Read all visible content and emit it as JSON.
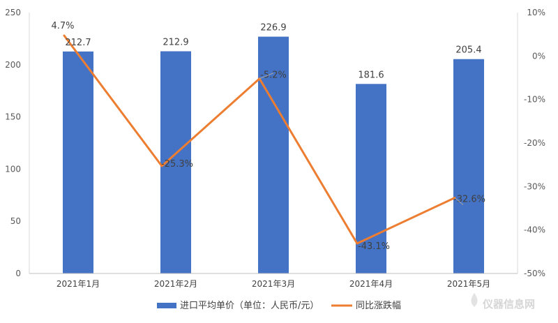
{
  "chart_data": {
    "type": "bar",
    "categories": [
      "2021年1月",
      "2021年2月",
      "2021年3月",
      "2021年4月",
      "2021年5月"
    ],
    "series": [
      {
        "name": "进口平均单价（单位：人民币/元）",
        "type": "bar",
        "axis": "left",
        "values": [
          212.7,
          212.9,
          226.9,
          181.6,
          205.4
        ],
        "labels": [
          "212.7",
          "212.9",
          "226.9",
          "181.6",
          "205.4"
        ],
        "color": "#4472C4"
      },
      {
        "name": "同比涨跌幅",
        "type": "line",
        "axis": "right",
        "values": [
          4.7,
          -25.3,
          -5.2,
          -43.1,
          -32.6
        ],
        "labels": [
          "4.7%",
          "-25.3%",
          "-5.2%",
          "-43.1%",
          "-32.6%"
        ],
        "color": "#ED7D31"
      }
    ],
    "y_left": {
      "min": 0,
      "max": 250,
      "step": 50,
      "ticks": [
        "0",
        "50",
        "100",
        "150",
        "200",
        "250"
      ]
    },
    "y_right": {
      "min": -50,
      "max": 10,
      "step": 10,
      "ticks": [
        "-50%",
        "-40%",
        "-30%",
        "-20%",
        "-10%",
        "0%",
        "10%"
      ]
    },
    "grid": false,
    "legend_position": "bottom"
  },
  "watermark": {
    "text": "仪器信息网",
    "icon": "droplet-logo-icon"
  }
}
